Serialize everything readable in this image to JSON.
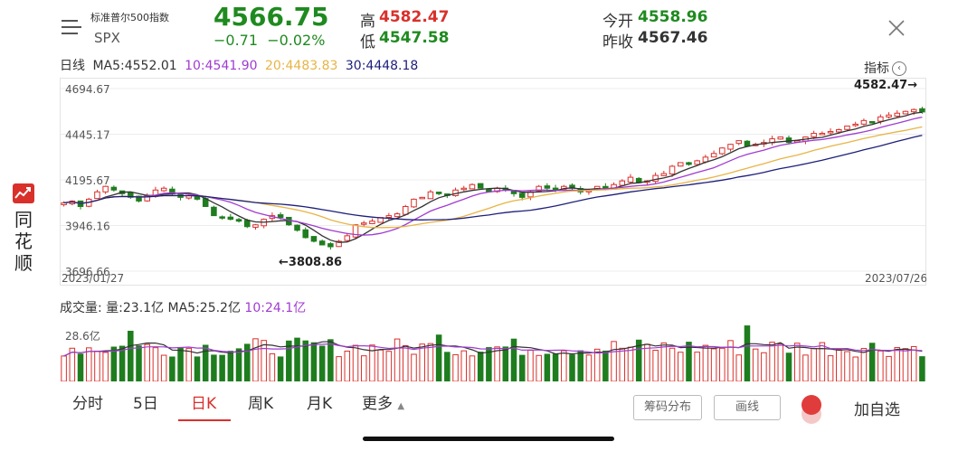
{
  "brand": {
    "name": "同花顺",
    "chars": [
      "同",
      "花",
      "顺"
    ]
  },
  "header": {
    "index_name": "标准普尔500指数",
    "index_code": "SPX",
    "last_price": "4566.75",
    "change": "−0.71",
    "change_pct": "−0.02%",
    "high_label": "高",
    "high_value": "4582.47",
    "low_label": "低",
    "low_value": "4547.58",
    "open_label": "今开",
    "open_value": "4558.96",
    "prev_close_label": "昨收",
    "prev_close_value": "4567.46"
  },
  "ma_row": {
    "period": "日线",
    "ma5": "MA5:4552.01",
    "ma10": "10:4541.90",
    "ma20": "20:4483.83",
    "ma30": "30:4448.18"
  },
  "indicator_label": "指标",
  "colors": {
    "up": "#d9302b",
    "down": "#1e7d1e",
    "ma5": "#333333",
    "ma10": "#a13bd1",
    "ma20": "#e8b445",
    "ma30": "#1d1f7a"
  },
  "chart_data": {
    "type": "candlestick",
    "y_ticks": [
      "4694.67",
      "4445.17",
      "4195.67",
      "3946.16",
      "3696.66"
    ],
    "ylim": [
      3696.66,
      4694.67
    ],
    "x_start_label": "2023/01/27",
    "x_end_label": "2023/07/26",
    "high_annotation": "4582.47→",
    "low_annotation": "←3808.86",
    "closes": [
      4070,
      4080,
      4050,
      4090,
      4130,
      4160,
      4140,
      4120,
      4100,
      4080,
      4110,
      4140,
      4150,
      4120,
      4100,
      4110,
      4090,
      4050,
      4000,
      3990,
      3980,
      3970,
      3940,
      3950,
      3980,
      4000,
      3990,
      3950,
      3920,
      3880,
      3860,
      3840,
      3830,
      3860,
      3890,
      3950,
      3960,
      3970,
      3990,
      4000,
      4010,
      4050,
      4090,
      4100,
      4130,
      4120,
      4110,
      4140,
      4150,
      4170,
      4150,
      4130,
      4150,
      4140,
      4120,
      4100,
      4130,
      4160,
      4150,
      4140,
      4160,
      4150,
      4130,
      4140,
      4160,
      4150,
      4170,
      4190,
      4210,
      4180,
      4190,
      4220,
      4230,
      4270,
      4290,
      4280,
      4300,
      4320,
      4340,
      4370,
      4390,
      4410,
      4380,
      4390,
      4400,
      4420,
      4430,
      4400,
      4410,
      4430,
      4450,
      4450,
      4460,
      4470,
      4490,
      4500,
      4520,
      4510,
      4540,
      4550,
      4560,
      4570,
      4580,
      4566.75
    ],
    "volume_label": "成交量:",
    "volume_value": "量:23.1亿",
    "volume_ma5": "MA5:25.2亿",
    "volume_ma10": "10:24.1亿",
    "volume_tick": "28.6亿"
  },
  "tabs": [
    "分时",
    "5日",
    "日K",
    "周K",
    "月K",
    "更多"
  ],
  "active_tab": "日K",
  "tools": {
    "chips": "筹码分布",
    "draw": "画线",
    "add_fav": "加自选"
  }
}
